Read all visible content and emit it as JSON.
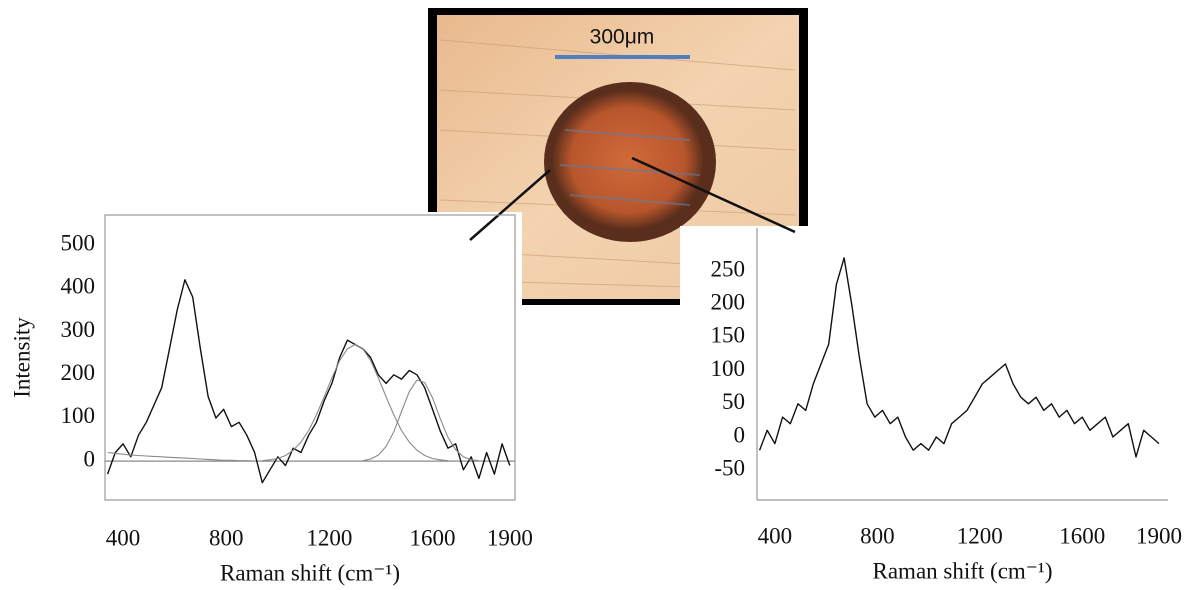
{
  "micrograph": {
    "scale_label": "300μm"
  },
  "chart_data": [
    {
      "type": "line",
      "x": [
        340,
        370,
        400,
        430,
        460,
        490,
        520,
        550,
        580,
        610,
        640,
        670,
        700,
        730,
        760,
        790,
        820,
        850,
        880,
        910,
        940,
        970,
        1000,
        1030,
        1060,
        1090,
        1120,
        1150,
        1180,
        1210,
        1240,
        1270,
        1300,
        1330,
        1360,
        1390,
        1420,
        1450,
        1480,
        1510,
        1540,
        1570,
        1600,
        1630,
        1660,
        1690,
        1720,
        1750,
        1780,
        1810,
        1840,
        1870,
        1900
      ],
      "series": [
        {
          "color": "#111111",
          "values": [
            -30,
            20,
            40,
            10,
            60,
            90,
            130,
            170,
            260,
            350,
            420,
            380,
            260,
            150,
            100,
            120,
            80,
            90,
            60,
            20,
            -50,
            -20,
            10,
            -10,
            30,
            20,
            60,
            90,
            140,
            180,
            240,
            280,
            270,
            260,
            240,
            200,
            180,
            200,
            190,
            210,
            200,
            170,
            120,
            70,
            30,
            40,
            -20,
            10,
            -40,
            20,
            -30,
            40,
            -10
          ]
        },
        {
          "color": "#8a8a8a",
          "values": [
            20,
            18,
            16,
            14,
            13,
            12,
            11,
            10,
            9,
            8,
            7,
            6,
            5,
            4,
            3,
            2,
            2,
            1,
            1,
            0,
            null,
            null,
            null,
            null,
            null,
            null,
            null,
            null,
            null,
            null,
            null,
            null,
            null,
            null,
            null,
            null,
            null,
            null,
            null,
            null,
            null,
            null,
            null,
            null,
            null,
            null,
            null,
            null,
            null,
            null,
            null,
            null,
            null
          ]
        },
        {
          "color": "#8a8a8a",
          "values": [
            null,
            null,
            null,
            null,
            null,
            null,
            null,
            null,
            null,
            null,
            null,
            null,
            null,
            null,
            null,
            null,
            null,
            null,
            null,
            null,
            1,
            3,
            6,
            13,
            25,
            44,
            71,
            107,
            149,
            193,
            233,
            260,
            270,
            260,
            233,
            193,
            149,
            107,
            71,
            44,
            25,
            13,
            6,
            3,
            1,
            null,
            null,
            null,
            null,
            null,
            null,
            null,
            null
          ]
        },
        {
          "color": "#8a8a8a",
          "values": [
            null,
            null,
            null,
            null,
            null,
            null,
            null,
            null,
            null,
            null,
            null,
            null,
            null,
            null,
            null,
            null,
            null,
            null,
            null,
            null,
            null,
            null,
            null,
            null,
            null,
            null,
            null,
            null,
            null,
            null,
            null,
            null,
            null,
            1,
            5,
            14,
            34,
            68,
            115,
            161,
            188,
            182,
            147,
            99,
            55,
            26,
            10,
            3,
            1,
            null,
            null,
            null,
            null
          ]
        }
      ],
      "xlim": [
        330,
        1920
      ],
      "xticks": [
        400,
        800,
        1200,
        1600,
        1900
      ],
      "ylim": [
        -90,
        570
      ],
      "yticks": [
        0,
        100,
        200,
        300,
        400,
        500
      ],
      "y_label": "Intensity",
      "x_label": "Raman shift (cm⁻¹)",
      "frame": true,
      "zero_line": true
    },
    {
      "type": "line",
      "x": [
        340,
        370,
        400,
        430,
        460,
        490,
        520,
        550,
        580,
        610,
        640,
        670,
        700,
        730,
        760,
        790,
        820,
        850,
        880,
        910,
        940,
        970,
        1000,
        1030,
        1060,
        1090,
        1120,
        1150,
        1180,
        1210,
        1240,
        1270,
        1300,
        1330,
        1360,
        1390,
        1420,
        1450,
        1480,
        1510,
        1540,
        1570,
        1600,
        1630,
        1660,
        1690,
        1720,
        1750,
        1780,
        1810,
        1840,
        1870,
        1900
      ],
      "series": [
        {
          "color": "#111111",
          "values": [
            -20,
            10,
            -10,
            30,
            20,
            50,
            40,
            80,
            110,
            140,
            230,
            270,
            200,
            120,
            50,
            30,
            40,
            20,
            30,
            0,
            -20,
            -10,
            -20,
            0,
            -10,
            20,
            30,
            40,
            60,
            80,
            90,
            100,
            110,
            80,
            60,
            50,
            60,
            40,
            50,
            30,
            40,
            20,
            30,
            10,
            20,
            30,
            0,
            10,
            20,
            -30,
            10,
            0,
            -10
          ]
        }
      ],
      "xlim": [
        330,
        1935
      ],
      "xticks": [
        400,
        800,
        1200,
        1600,
        1900
      ],
      "ylim": [
        -95,
        315
      ],
      "yticks": [
        -50,
        0,
        50,
        100,
        150,
        200,
        250
      ],
      "x_label": "Raman shift (cm⁻¹)",
      "frame": false,
      "zero_line": false
    }
  ]
}
